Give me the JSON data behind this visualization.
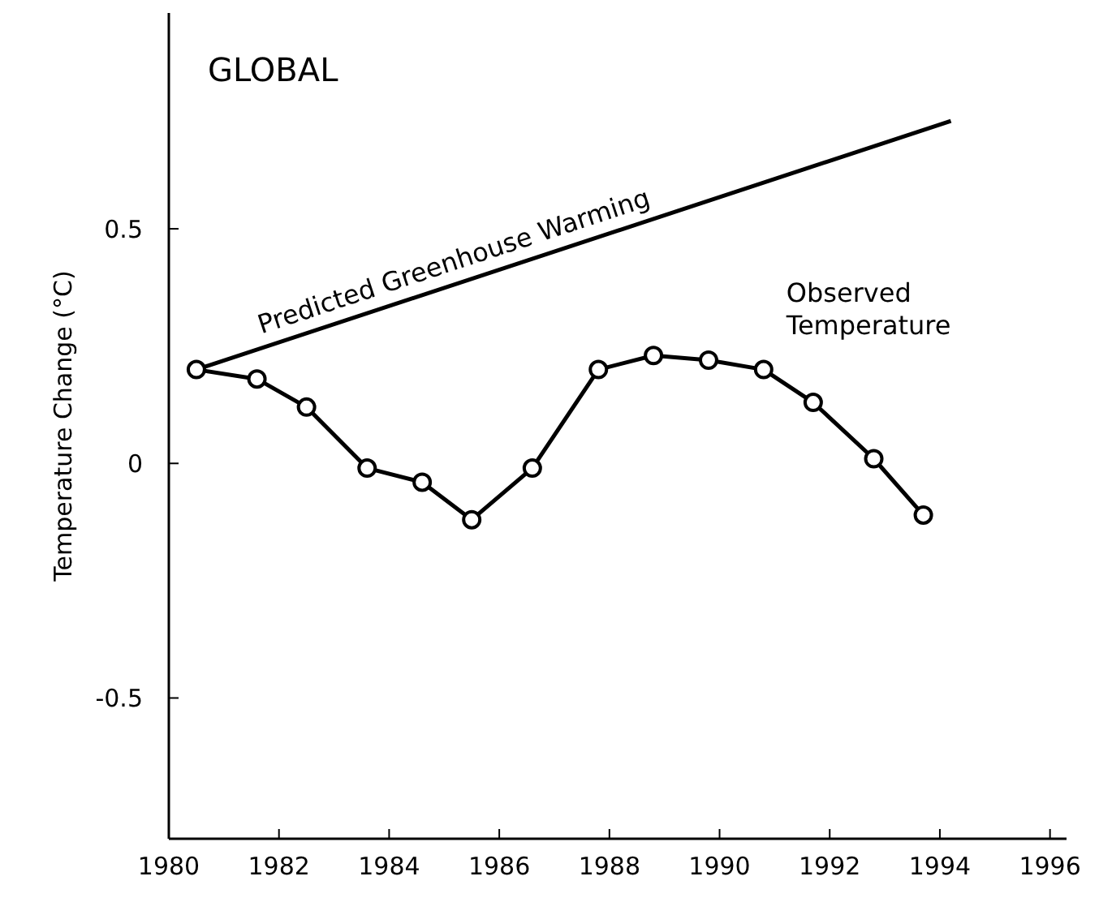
{
  "chart_data": {
    "type": "line",
    "title": "GLOBAL",
    "ylabel": "Temperature Change (°C)",
    "xlim": [
      1980,
      1996.3
    ],
    "xticks": [
      1980,
      1982,
      1984,
      1986,
      1988,
      1990,
      1992,
      1994,
      1996
    ],
    "ylim": [
      -0.8,
      0.96
    ],
    "yticks": [
      0.5,
      0,
      -0.5
    ],
    "grid": false,
    "series": [
      {
        "name": "Predicted Greenhouse Warming",
        "color": "#000000",
        "x": [
          1980.5,
          1994.2
        ],
        "values": [
          0.2,
          0.73
        ]
      },
      {
        "name": "Observed Temperature",
        "color": "#000000",
        "marker": "circle",
        "x": [
          1980.5,
          1981.6,
          1982.5,
          1983.6,
          1984.6,
          1985.5,
          1986.6,
          1987.8,
          1988.8,
          1989.8,
          1990.8,
          1991.7,
          1992.8,
          1993.7
        ],
        "values": [
          0.2,
          0.18,
          0.12,
          -0.01,
          -0.04,
          -0.12,
          -0.01,
          0.2,
          0.23,
          0.22,
          0.2,
          0.13,
          0.01,
          -0.11
        ]
      }
    ]
  }
}
